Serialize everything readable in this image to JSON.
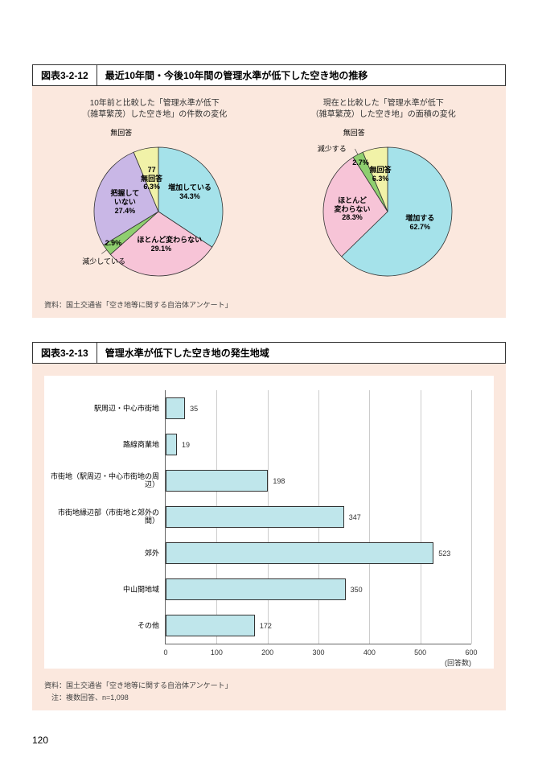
{
  "page_number": "120",
  "charts": {
    "pie_block": {
      "id": "図表3-2-12",
      "title": "最近10年間・今後10年間の管理水準が低下した空き地の推移",
      "source": "資料：国土交通省「空き地等に関する自治体アンケート」",
      "left": {
        "title_l1": "10年前と比較した「管理水準が低下",
        "title_l2": "（雑草繁茂）した空き地」の件数の変化",
        "slices": [
          {
            "label": "増加している",
            "pct": 34.3,
            "color": "#a5e2ea"
          },
          {
            "label": "ほとんど変わらない",
            "pct": 29.1,
            "color": "#f7c4d7"
          },
          {
            "label": "減少している",
            "pct": 2.9,
            "color": "#8fcf6f"
          },
          {
            "label": "把握して\nいない",
            "pct": 27.4,
            "color": "#c9b7e6"
          },
          {
            "label": "無回答",
            "pct": 6.3,
            "color": "#f1f2a8",
            "label2": "77"
          }
        ],
        "ext_labels": {
          "reduce": "減少している",
          "noanswer": "無回答"
        }
      },
      "right": {
        "title_l1": "現在と比較した「管理水準が低下",
        "title_l2": "（雑草繁茂）した空き地」の面積の変化",
        "slices": [
          {
            "label": "増加する",
            "pct": 62.7,
            "color": "#a5e2ea"
          },
          {
            "label": "ほとんど\n変わらない",
            "pct": 28.3,
            "color": "#f7c4d7"
          },
          {
            "label": "減少する",
            "pct": 2.7,
            "color": "#8fcf6f"
          },
          {
            "label": "無回答",
            "pct": 6.3,
            "color": "#f1f2a8"
          }
        ],
        "ext_labels": {
          "reduce": "減少する",
          "noanswer": "無回答"
        }
      }
    },
    "bar_block": {
      "id": "図表3-2-13",
      "title": "管理水準が低下した空き地の発生地域",
      "source": "資料：国土交通省「空き地等に関する自治体アンケート」",
      "note": "　注：複数回答、n=1,098",
      "xmax": 600,
      "xtick_step": 100,
      "x_axis_title": "(回答数)",
      "bar_color": "#bfe6eb",
      "bar_border": "#333333",
      "categories": [
        {
          "label": "駅周辺・中心市街地",
          "value": 35
        },
        {
          "label": "路線商業地",
          "value": 19
        },
        {
          "label": "市街地（駅周辺・中心市街地の周辺）",
          "value": 198
        },
        {
          "label": "市街地縁辺部（市街地と郊外の間）",
          "value": 347
        },
        {
          "label": "郊外",
          "value": 523
        },
        {
          "label": "中山間地域",
          "value": 350
        },
        {
          "label": "その他",
          "value": 172
        }
      ]
    }
  }
}
